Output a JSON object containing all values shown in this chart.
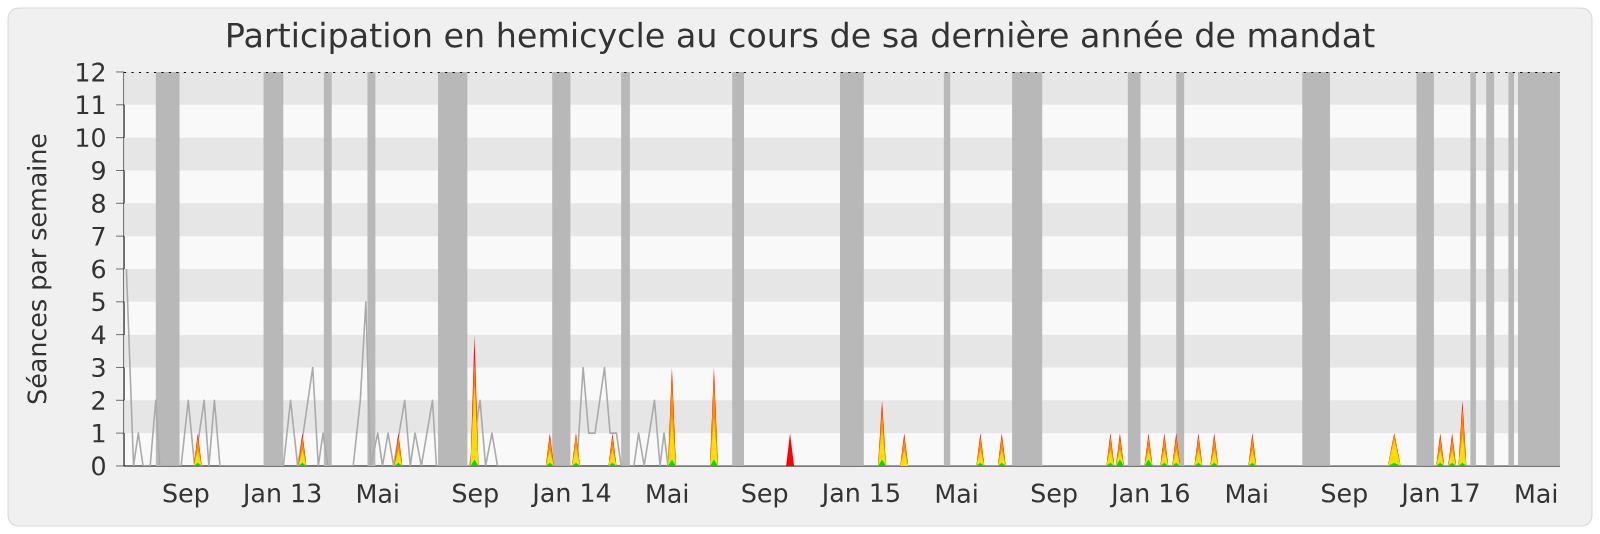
{
  "chart_data": {
    "type": "area",
    "title": "Participation en hemicycle au cours de sa dernière année de mandat",
    "ylabel": "Séances par semaine",
    "xlim": [
      "2012-06-15",
      "2017-05-31"
    ],
    "ylim": [
      0,
      12
    ],
    "yticks": [
      0,
      1,
      2,
      3,
      4,
      5,
      6,
      7,
      8,
      9,
      10,
      11,
      12
    ],
    "xticks": [
      {
        "value": "2012-09-01",
        "label": "Sep"
      },
      {
        "value": "2013-01-01",
        "label": "Jan 13"
      },
      {
        "value": "2013-05-01",
        "label": "Mai"
      },
      {
        "value": "2013-09-01",
        "label": "Sep"
      },
      {
        "value": "2014-01-01",
        "label": "Jan 14"
      },
      {
        "value": "2014-05-01",
        "label": "Mai"
      },
      {
        "value": "2014-09-01",
        "label": "Sep"
      },
      {
        "value": "2015-01-01",
        "label": "Jan 15"
      },
      {
        "value": "2015-05-01",
        "label": "Mai"
      },
      {
        "value": "2015-09-01",
        "label": "Sep"
      },
      {
        "value": "2016-01-01",
        "label": "Jan 16"
      },
      {
        "value": "2016-05-01",
        "label": "Mai"
      },
      {
        "value": "2016-09-01",
        "label": "Sep"
      },
      {
        "value": "2017-01-01",
        "label": "Jan 17"
      },
      {
        "value": "2017-05-01",
        "label": "Mai"
      }
    ],
    "x": [
      "2012-09-11",
      "2012-09-16",
      "2012-09-21",
      "2013-01-21",
      "2013-01-26",
      "2013-01-31",
      "2013-05-22",
      "2013-05-27",
      "2013-06-01",
      "2013-08-26",
      "2013-08-31",
      "2013-09-05",
      "2013-11-29",
      "2013-12-04",
      "2013-12-09",
      "2014-01-01",
      "2014-01-06",
      "2014-01-11",
      "2014-02-16",
      "2014-02-21",
      "2014-02-26",
      "2014-05-02",
      "2014-05-07",
      "2014-05-12",
      "2014-06-24",
      "2014-06-29",
      "2014-07-04",
      "2014-09-28",
      "2014-10-03",
      "2014-10-08",
      "2015-01-22",
      "2015-01-27",
      "2015-02-01",
      "2015-02-19",
      "2015-02-24",
      "2015-03-01",
      "2015-05-26",
      "2015-05-31",
      "2015-06-05",
      "2015-06-22",
      "2015-06-27",
      "2015-07-02",
      "2015-11-06",
      "2015-11-11",
      "2015-11-16",
      "2015-11-18",
      "2015-11-23",
      "2015-11-28",
      "2015-12-24",
      "2015-12-29",
      "2016-01-03",
      "2016-01-13",
      "2016-01-18",
      "2016-01-23",
      "2016-01-28",
      "2016-02-02",
      "2016-02-07",
      "2016-02-25",
      "2016-03-01",
      "2016-03-06",
      "2016-03-16",
      "2016-03-21",
      "2016-03-26",
      "2016-05-03",
      "2016-05-08",
      "2016-05-13",
      "2016-10-26",
      "2016-11-03",
      "2016-11-11",
      "2016-12-26",
      "2016-12-31",
      "2017-01-05",
      "2017-01-10",
      "2017-01-15",
      "2017-01-20",
      "2017-01-23",
      "2017-01-28",
      "2017-02-02"
    ],
    "series": [
      {
        "type": "line",
        "color": "#aaaaaa",
        "x": [
          "2012-06-18",
          "2012-06-27",
          "2012-07-03",
          "2012-07-09",
          "2012-07-18",
          "2012-07-25",
          "2012-07-30",
          "2012-08-26",
          "2012-09-04",
          "2012-09-12",
          "2012-09-24",
          "2012-09-30",
          "2012-10-07",
          "2012-10-14",
          "2013-01-02",
          "2013-01-11",
          "2013-01-20",
          "2013-01-27",
          "2013-02-08",
          "2013-02-15",
          "2013-02-21",
          "2013-02-27",
          "2013-03-31",
          "2013-04-09",
          "2013-04-16",
          "2013-04-22",
          "2013-05-01",
          "2013-05-07",
          "2013-05-14",
          "2013-05-21",
          "2013-06-04",
          "2013-06-11",
          "2013-06-17",
          "2013-06-25",
          "2013-07-09",
          "2013-07-14",
          "2013-08-25",
          "2013-09-07",
          "2013-09-14",
          "2013-09-22",
          "2013-09-29",
          "2014-01-07",
          "2014-01-15",
          "2014-01-22",
          "2014-01-30",
          "2014-02-11",
          "2014-02-18",
          "2014-02-26",
          "2014-03-04",
          "2014-03-20",
          "2014-03-26",
          "2014-04-02",
          "2014-04-15",
          "2014-04-22",
          "2014-04-27",
          "2014-05-02",
          "2017-05-31"
        ],
        "values": [
          6,
          0,
          1,
          0,
          0,
          2,
          0,
          0,
          2,
          0,
          2,
          0,
          2,
          0,
          0,
          2,
          0,
          1,
          3,
          0,
          1,
          0,
          0,
          2,
          5,
          0,
          1,
          0,
          1,
          0,
          2,
          0,
          1,
          0,
          2,
          0,
          0,
          2,
          0,
          1,
          0,
          0,
          3,
          1,
          1,
          3,
          1,
          1,
          0,
          0,
          1,
          0,
          2,
          0,
          1,
          0,
          0
        ]
      },
      {
        "color": "#ff0000",
        "values": [
          0,
          1,
          0,
          0,
          1,
          0,
          0,
          1,
          0,
          0,
          4,
          0,
          0,
          1,
          0,
          0,
          1,
          0,
          0,
          1,
          0,
          0,
          3,
          0,
          0,
          3,
          0,
          0,
          1,
          0,
          0,
          2,
          0,
          0,
          1,
          0,
          0,
          1,
          0,
          0,
          1,
          0,
          0,
          1,
          0,
          0,
          1,
          0,
          0,
          1,
          0,
          0,
          1,
          0,
          0,
          1,
          0,
          0,
          1,
          0,
          0,
          1,
          0,
          0,
          1,
          0,
          0,
          1,
          0,
          0,
          1,
          0,
          0,
          1,
          0,
          0,
          2,
          0
        ]
      },
      {
        "color": "#ff8c00",
        "values": [
          0,
          0.9,
          0,
          0,
          0.9,
          0,
          0,
          0.9,
          0,
          0,
          3.3,
          0,
          0,
          0.9,
          0,
          0,
          1,
          0,
          0,
          0.9,
          0,
          0,
          2.8,
          0,
          0,
          2.8,
          0,
          0,
          0,
          0,
          0,
          1.8,
          0,
          0,
          0.9,
          0,
          0,
          0.9,
          0,
          0,
          0.9,
          0,
          0,
          0.9,
          0,
          0,
          0.9,
          0,
          0,
          0.9,
          0,
          0,
          0.9,
          0,
          0,
          0.9,
          0,
          0,
          0.9,
          0,
          0,
          0.9,
          0,
          0,
          0.9,
          0,
          0,
          1,
          0,
          0,
          0.9,
          0,
          0,
          0.9,
          0,
          0,
          1.8,
          0
        ]
      },
      {
        "color": "#ffdd00",
        "values": [
          0,
          0.5,
          0,
          0,
          0.5,
          0,
          0,
          0.5,
          0,
          0,
          2.5,
          0,
          0,
          0.5,
          0,
          0,
          0.6,
          0,
          0,
          0.5,
          0,
          0,
          1.5,
          0,
          0,
          1.5,
          0,
          0,
          0,
          0,
          0,
          1.2,
          0,
          0,
          0.5,
          0,
          0,
          0.5,
          0,
          0,
          0.5,
          0,
          0,
          0.5,
          0,
          0,
          0.5,
          0,
          0,
          0.5,
          0,
          0,
          0.5,
          0,
          0,
          0.5,
          0,
          0,
          0.5,
          0,
          0,
          0.5,
          0,
          0,
          0.5,
          0,
          0,
          0.8,
          0,
          0,
          0.5,
          0,
          0,
          0.5,
          0,
          0,
          1,
          0
        ]
      },
      {
        "color": "#00dd00",
        "values": [
          0,
          0.1,
          0,
          0,
          0.1,
          0,
          0,
          0.1,
          0,
          0,
          0.2,
          0,
          0,
          0.1,
          0,
          0,
          0.1,
          0,
          0,
          0.1,
          0,
          0,
          0.2,
          0,
          0,
          0.2,
          0,
          0,
          0,
          0,
          0,
          0.2,
          0,
          0,
          0,
          0,
          0,
          0.1,
          0,
          0,
          0.1,
          0,
          0,
          0.1,
          0,
          0,
          0.2,
          0,
          0,
          0.2,
          0,
          0,
          0.1,
          0,
          0,
          0.1,
          0,
          0,
          0.1,
          0,
          0,
          0.1,
          0,
          0,
          0.1,
          0,
          0,
          0.1,
          0,
          0,
          0.1,
          0,
          0,
          0.1,
          0,
          0,
          0.1,
          0
        ]
      }
    ],
    "bands": [
      {
        "axis": "y",
        "from": 1,
        "to": 2,
        "color": "#e6e6e6"
      },
      {
        "axis": "y",
        "from": 3,
        "to": 4,
        "color": "#e6e6e6"
      },
      {
        "axis": "y",
        "from": 5,
        "to": 6,
        "color": "#e6e6e6"
      },
      {
        "axis": "y",
        "from": 7,
        "to": 8,
        "color": "#e6e6e6"
      },
      {
        "axis": "y",
        "from": 9,
        "to": 10,
        "color": "#e6e6e6"
      },
      {
        "axis": "y",
        "from": 11,
        "to": 12,
        "color": "#e6e6e6"
      },
      {
        "axis": "x",
        "from": "2012-07-25",
        "to": "2012-08-24",
        "color": "#b8b8b8"
      },
      {
        "axis": "x",
        "from": "2012-12-08",
        "to": "2013-01-02",
        "color": "#b8b8b8"
      },
      {
        "axis": "x",
        "from": "2013-02-22",
        "to": "2013-03-04",
        "color": "#b8b8b8"
      },
      {
        "axis": "x",
        "from": "2013-04-18",
        "to": "2013-04-28",
        "color": "#b8b8b8"
      },
      {
        "axis": "x",
        "from": "2013-07-16",
        "to": "2013-08-22",
        "color": "#b8b8b8"
      },
      {
        "axis": "x",
        "from": "2013-12-07",
        "to": "2013-12-30",
        "color": "#b8b8b8"
      },
      {
        "axis": "x",
        "from": "2014-03-04",
        "to": "2014-03-15",
        "color": "#b8b8b8"
      },
      {
        "axis": "x",
        "from": "2014-07-22",
        "to": "2014-08-06",
        "color": "#b8b8b8"
      },
      {
        "axis": "x",
        "from": "2014-12-05",
        "to": "2015-01-04",
        "color": "#b8b8b8"
      },
      {
        "axis": "x",
        "from": "2015-04-15",
        "to": "2015-04-23",
        "color": "#b8b8b8"
      },
      {
        "axis": "x",
        "from": "2015-07-10",
        "to": "2015-08-17",
        "color": "#b8b8b8"
      },
      {
        "axis": "x",
        "from": "2015-12-03",
        "to": "2015-12-19",
        "color": "#b8b8b8"
      },
      {
        "axis": "x",
        "from": "2016-02-02",
        "to": "2016-02-12",
        "color": "#b8b8b8"
      },
      {
        "axis": "x",
        "from": "2016-07-10",
        "to": "2016-08-14",
        "color": "#b8b8b8"
      },
      {
        "axis": "x",
        "from": "2016-12-01",
        "to": "2016-12-23",
        "color": "#b8b8b8"
      },
      {
        "axis": "x",
        "from": "2017-02-07",
        "to": "2017-02-14",
        "color": "#b8b8b8"
      },
      {
        "axis": "x",
        "from": "2017-02-27",
        "to": "2017-03-09",
        "color": "#b8b8b8"
      },
      {
        "axis": "x",
        "from": "2017-03-27",
        "to": "2017-04-03",
        "color": "#b8b8b8"
      },
      {
        "axis": "x",
        "from": "2017-04-08",
        "to": "2017-05-31",
        "color": "#b8b8b8"
      }
    ]
  }
}
